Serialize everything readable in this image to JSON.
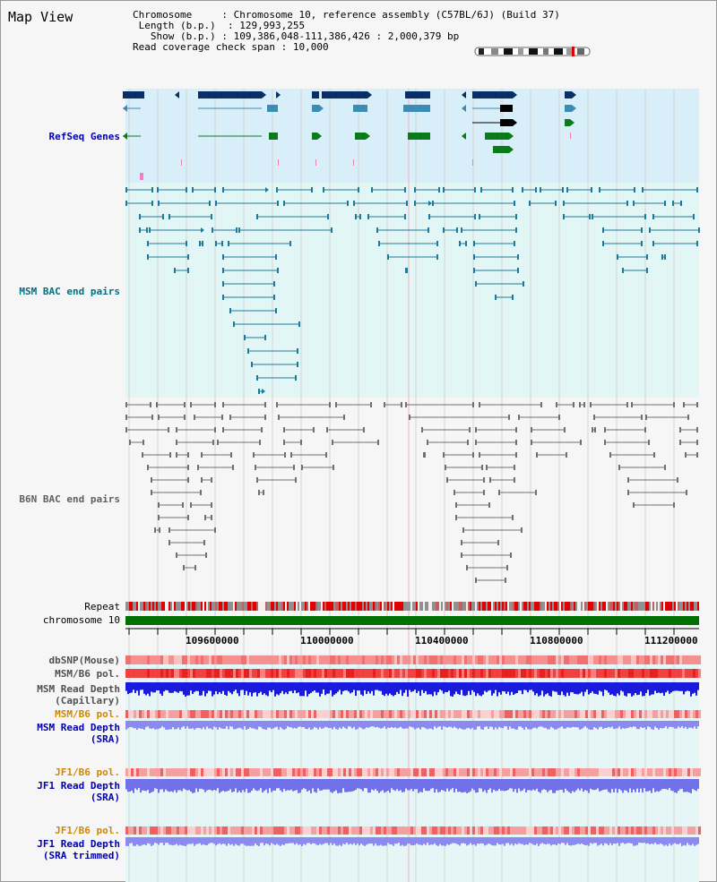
{
  "view_title": "Map View",
  "header": {
    "chromosome_label": "Chromosome",
    "chromosome_value": "Chromosome 10, reference assembly (C57BL/6J) (Build 37)",
    "length_label": "Length (b.p.)",
    "length_value": "129,993,255",
    "show_label": "Show (b.p.)",
    "show_value": "109,386,048-111,386,426 : 2,000,379 bp",
    "span_label": "Read coverage check span",
    "span_value": "10,000"
  },
  "tracks": {
    "refseq": "RefSeq Genes",
    "msm_bac": "MSM BAC end pairs",
    "b6n_bac": "B6N BAC end pairs",
    "repeat": "Repeat",
    "chromosome": "chromosome 10",
    "dbsnp": "dbSNP(Mouse)",
    "msm_b6_pol": "MSM/B6 pol.",
    "msm_depth_cap_1": "MSM Read Depth",
    "msm_depth_cap_2": "(Capillary)",
    "msm_b6_pol_sra": "MSM/B6 pol.",
    "msm_depth_sra_1": "MSM Read Depth",
    "msm_depth_sra_2": "(SRA)",
    "jf1_pol": "JF1/B6 pol.",
    "jf1_depth_1": "JF1 Read Depth",
    "jf1_depth_2": "(SRA)",
    "jf1_pol_trim": "JF1/B6 pol.",
    "jf1_trim_1": "JF1 Read Depth",
    "jf1_trim_2": "(SRA trimmed)"
  },
  "ruler": {
    "ticks": [
      "109600000",
      "110000000",
      "110400000",
      "110800000",
      "111200000"
    ]
  },
  "colors": {
    "refseq_bg": "#d8eef8",
    "msm_bg": "#e2f6f6",
    "b6n_bg": "#f6f6f6",
    "gene_dark": "#0a2f66",
    "gene_mid": "#3c8cb4",
    "gene_green": "#0a7a1a",
    "msm_pair": "#1f7a9a",
    "b6n_pair": "#707070",
    "chrom_green": "#007000",
    "depth_blue": "#1a1adc",
    "depth_light": "#8a8af0",
    "pol_red": "#e83030",
    "label_blue": "#0000b0",
    "label_teal": "#007080",
    "label_orange": "#d08800"
  }
}
